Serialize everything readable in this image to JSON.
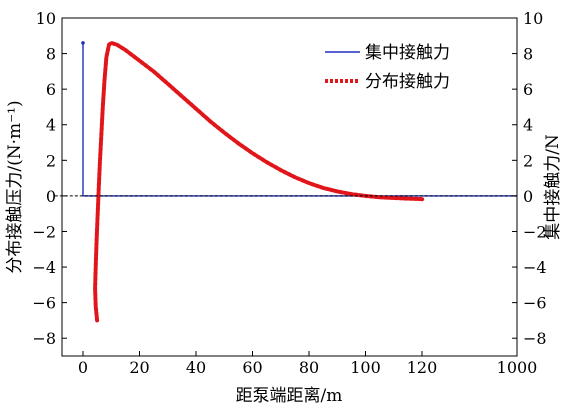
{
  "chart_data": {
    "type": "line",
    "xlabel": "距泵端距离/m",
    "ylabel_left": "分布接触压力/(N·m⁻¹)",
    "ylabel_right": "集中接触力/N",
    "x_ticks": [
      "0",
      "20",
      "40",
      "60",
      "80",
      "100",
      "120",
      "1000"
    ],
    "y_ticks": [
      "−8",
      "−6",
      "−4",
      "−2",
      "0",
      "2",
      "4",
      "6",
      "8",
      "10"
    ],
    "ylim": [
      -9,
      10
    ],
    "xlim": [
      -10,
      1000
    ],
    "grid": false,
    "legend_position": "top-right",
    "series": [
      {
        "name": "集中接触力",
        "style": "solid",
        "color": "#1f2fbf",
        "points": [
          [
            0,
            0
          ],
          [
            0,
            8.6
          ],
          [
            0,
            0
          ],
          [
            125,
            0
          ],
          [
            1000,
            0
          ]
        ]
      },
      {
        "name": "分布接触力",
        "style": "dotted",
        "color": "#e0161b",
        "points": [
          [
            5,
            -7.0
          ],
          [
            4.5,
            -6.2
          ],
          [
            4.3,
            -5.2
          ],
          [
            4.5,
            -4.0
          ],
          [
            4.8,
            -2.5
          ],
          [
            5.2,
            -1.0
          ],
          [
            5.6,
            0.5
          ],
          [
            6.0,
            2.0
          ],
          [
            6.5,
            3.5
          ],
          [
            7.0,
            5.0
          ],
          [
            7.6,
            6.5
          ],
          [
            8.3,
            7.8
          ],
          [
            9.2,
            8.5
          ],
          [
            10,
            8.6
          ],
          [
            12,
            8.5
          ],
          [
            15,
            8.2
          ],
          [
            20,
            7.6
          ],
          [
            25,
            7.0
          ],
          [
            30,
            6.3
          ],
          [
            35,
            5.6
          ],
          [
            40,
            4.9
          ],
          [
            45,
            4.2
          ],
          [
            50,
            3.55
          ],
          [
            55,
            2.95
          ],
          [
            60,
            2.4
          ],
          [
            65,
            1.9
          ],
          [
            70,
            1.45
          ],
          [
            75,
            1.05
          ],
          [
            80,
            0.72
          ],
          [
            85,
            0.45
          ],
          [
            90,
            0.25
          ],
          [
            95,
            0.1
          ],
          [
            100,
            0.0
          ],
          [
            105,
            -0.08
          ],
          [
            110,
            -0.12
          ],
          [
            115,
            -0.15
          ],
          [
            120,
            -0.18
          ],
          [
            123,
            -0.2
          ]
        ]
      },
      {
        "name": "",
        "style": "dashed",
        "color": "#000000",
        "points": [
          [
            -10,
            0
          ],
          [
            1000,
            0
          ]
        ]
      }
    ]
  }
}
